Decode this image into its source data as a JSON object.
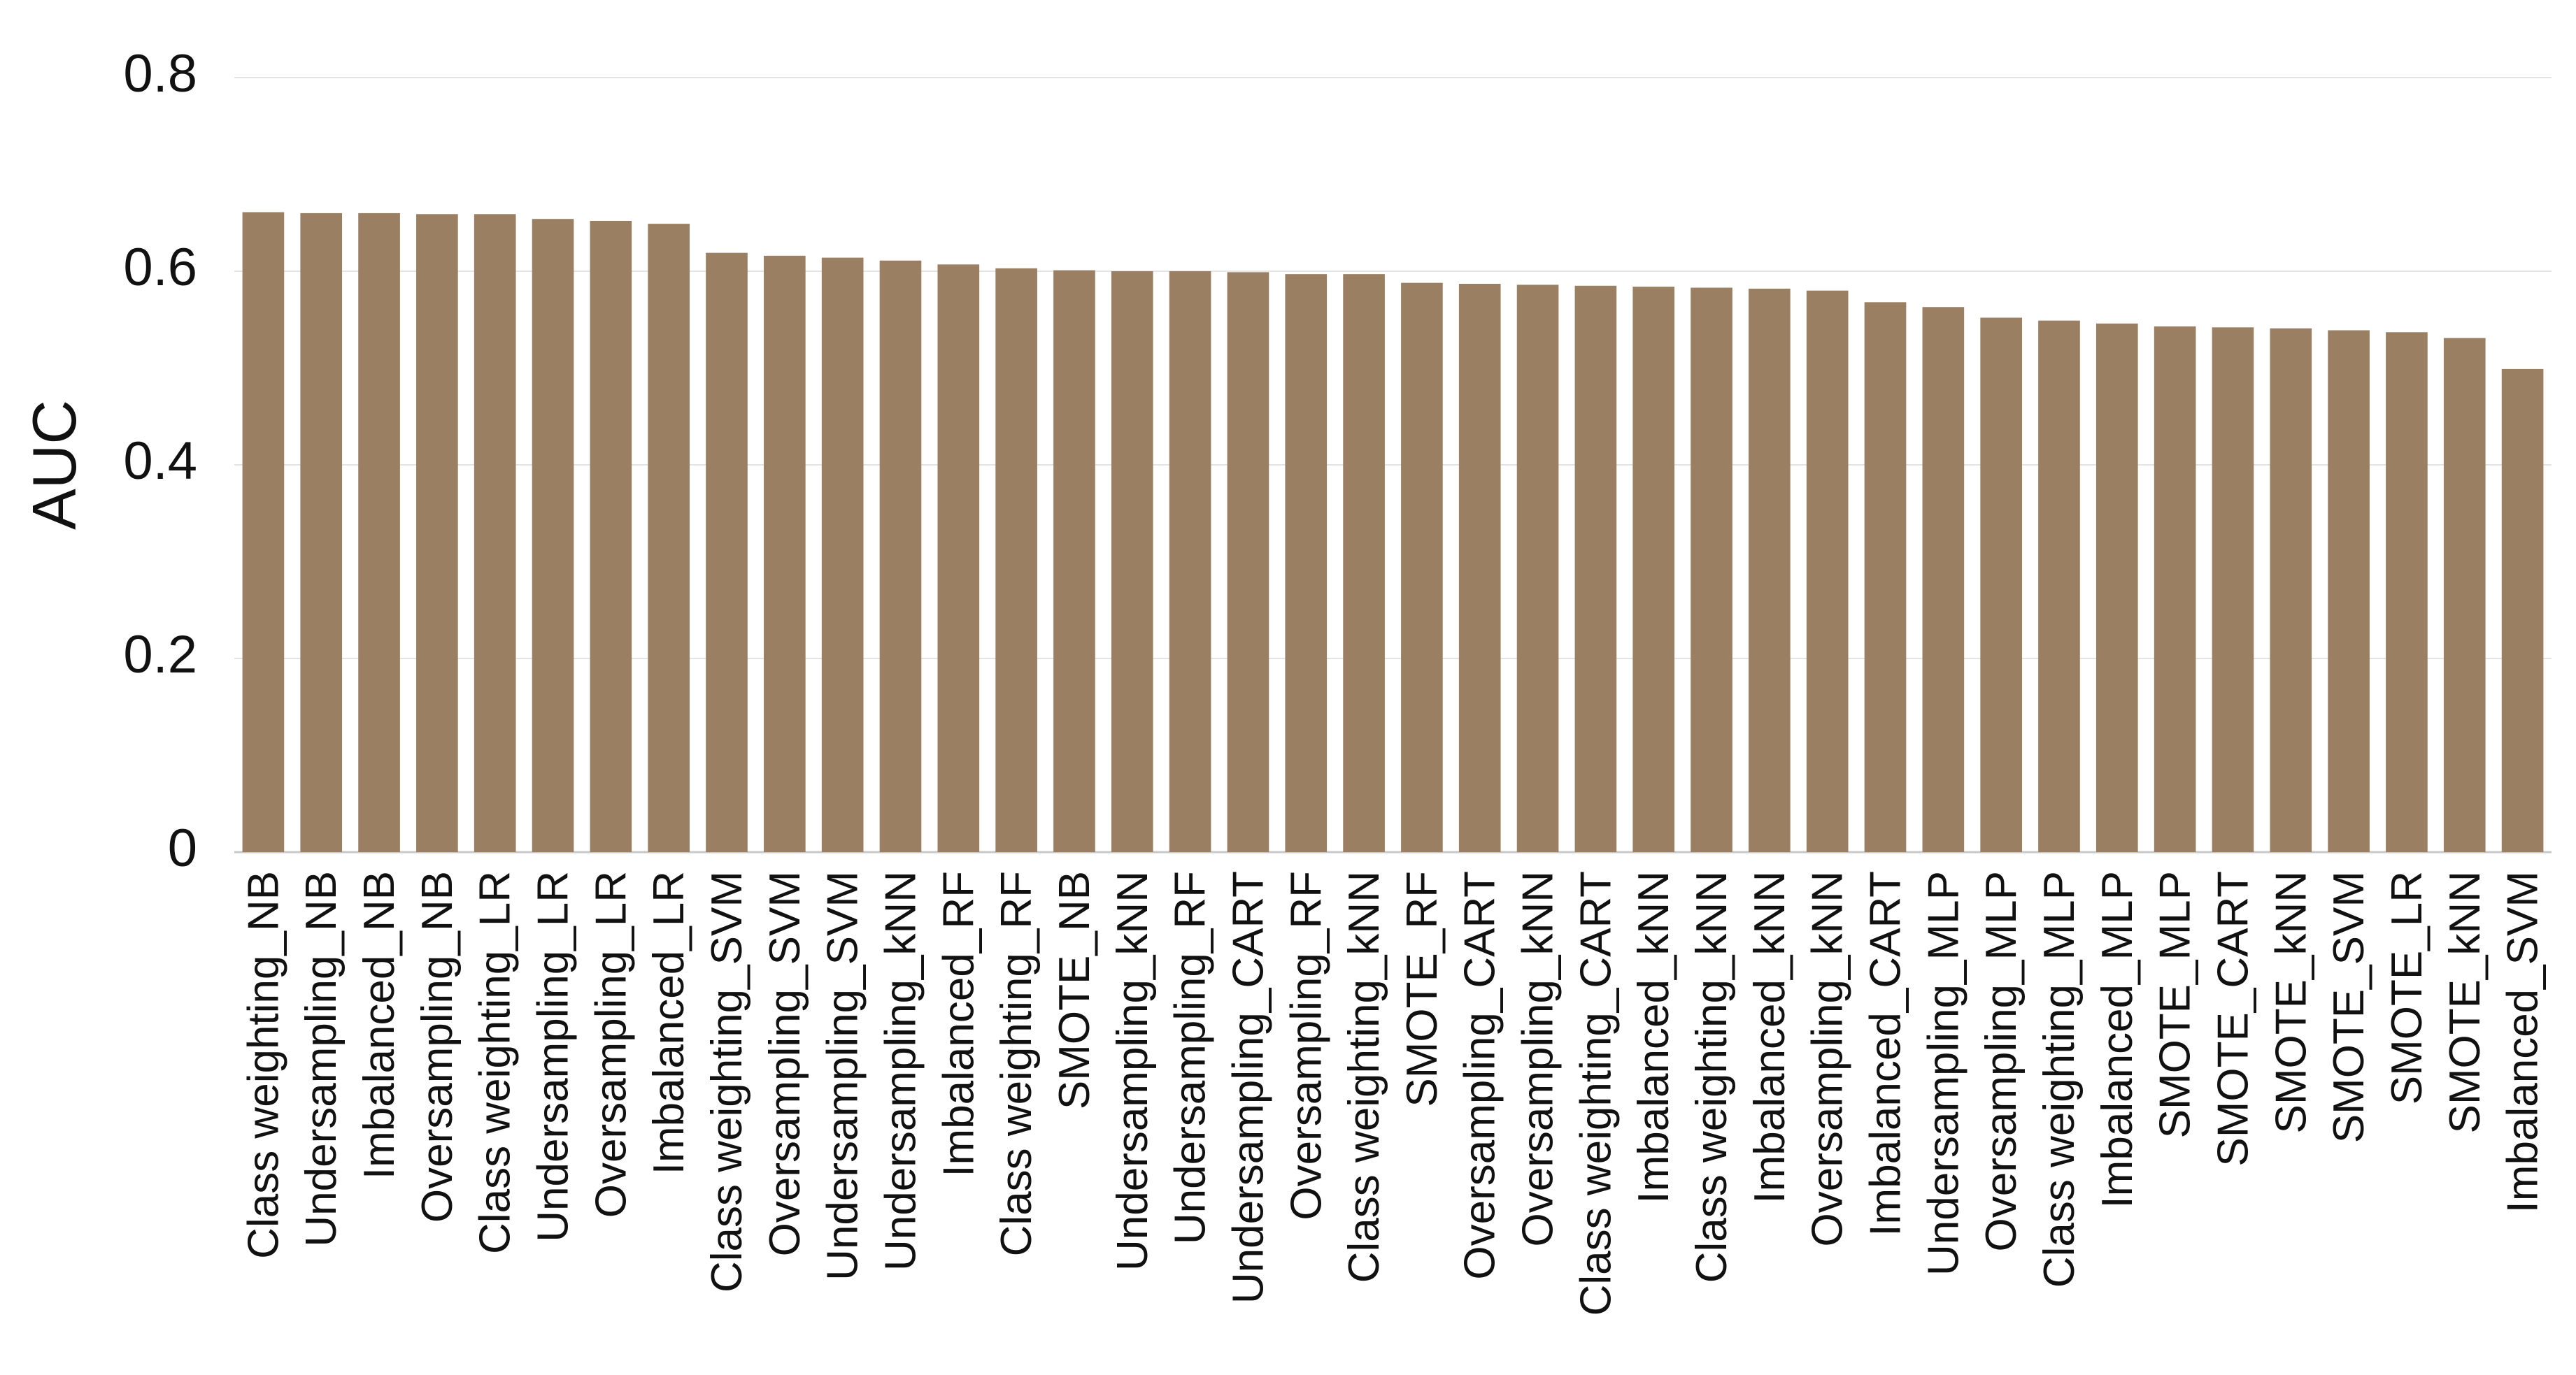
{
  "chart_data": {
    "type": "bar",
    "title": "",
    "xlabel": "",
    "ylabel": "AUC",
    "ylim": [
      0,
      0.8
    ],
    "yticks": [
      0,
      0.2,
      0.4,
      0.6,
      0.8
    ],
    "ytick_labels": [
      "0",
      "0.2",
      "0.4",
      "0.6",
      "0.8"
    ],
    "grid": true,
    "bar_color": "#9a7f62",
    "categories": [
      "Class weighting_NB",
      "Undersampling_NB",
      "Imbalanced_NB",
      "Oversampling_NB",
      "Class weighting_LR",
      "Undersampling_LR",
      "Oversampling_LR",
      "Imbalanced_LR",
      "Class weighting_SVM",
      "Oversampling_SVM",
      "Undersampling_SVM",
      "Undersampling_kNN",
      "Imbalanced_RF",
      "Class weighting_RF",
      "SMOTE_NB",
      "Undersampling_kNN",
      "Undersampling_RF",
      "Undersampling_CART",
      "Oversampling_RF",
      "Class weighting_kNN",
      "SMOTE_RF",
      "Oversampling_CART",
      "Oversampling_kNN",
      "Class weighting_CART",
      "Imbalanced_kNN",
      "Class weighting_kNN",
      "Imbalanced_kNN",
      "Oversampling_kNN",
      "Imbalanced_CART",
      "Undersampling_MLP",
      "Oversampling_MLP",
      "Class weighting_MLP",
      "Imbalanced_MLP",
      "SMOTE_MLP",
      "SMOTE_CART",
      "SMOTE_kNN",
      "SMOTE_SVM",
      "SMOTE_LR",
      "SMOTE_kNN",
      "Imbalanced_SVM"
    ],
    "values": [
      0.661,
      0.66,
      0.66,
      0.659,
      0.659,
      0.654,
      0.652,
      0.649,
      0.619,
      0.616,
      0.614,
      0.611,
      0.607,
      0.603,
      0.601,
      0.6,
      0.6,
      0.599,
      0.597,
      0.597,
      0.588,
      0.587,
      0.586,
      0.585,
      0.584,
      0.583,
      0.582,
      0.58,
      0.568,
      0.563,
      0.552,
      0.549,
      0.546,
      0.543,
      0.542,
      0.541,
      0.539,
      0.537,
      0.531,
      0.499
    ]
  }
}
